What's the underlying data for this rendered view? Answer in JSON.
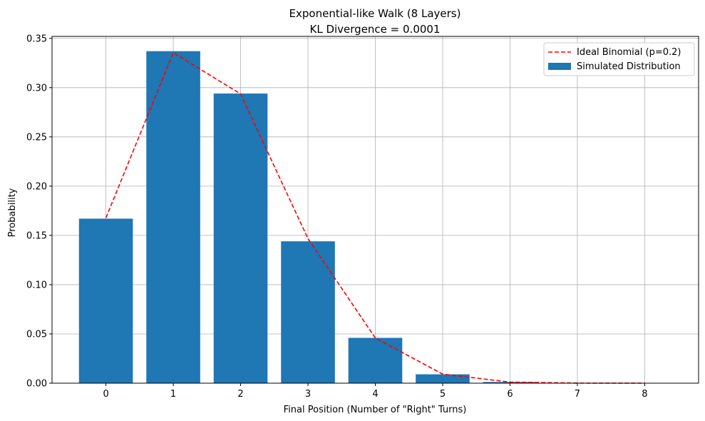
{
  "chart_data": {
    "type": "bar",
    "title": "Exponential-like Walk (8 Layers)",
    "subtitle": "KL Divergence = 0.0001",
    "xlabel": "Final Position (Number of \"Right\" Turns)",
    "ylabel": "Probability",
    "x": [
      0,
      1,
      2,
      3,
      4,
      5,
      6,
      7,
      8
    ],
    "xlim": [
      -0.8,
      8.8
    ],
    "ylim": [
      0,
      0.352
    ],
    "yticks": [
      0.0,
      0.05,
      0.1,
      0.15,
      0.2,
      0.25,
      0.3,
      0.35
    ],
    "ytick_labels": [
      "0.00",
      "0.05",
      "0.10",
      "0.15",
      "0.20",
      "0.25",
      "0.30",
      "0.35"
    ],
    "xtick_labels": [
      "0",
      "1",
      "2",
      "3",
      "4",
      "5",
      "6",
      "7",
      "8"
    ],
    "grid": true,
    "legend_position": "top-right",
    "series": [
      {
        "name": "Simulated Distribution",
        "kind": "bar",
        "color": "#1f77b4",
        "values": [
          0.167,
          0.337,
          0.294,
          0.144,
          0.046,
          0.009,
          0.0012,
          0.0001,
          0.0
        ]
      },
      {
        "name": "Ideal Binomial (p=0.2)",
        "kind": "line",
        "style": "dashed",
        "color": "#ff0000",
        "values": [
          0.1678,
          0.3355,
          0.2936,
          0.1468,
          0.0459,
          0.0092,
          0.0011,
          0.0001,
          0.0
        ]
      }
    ]
  }
}
